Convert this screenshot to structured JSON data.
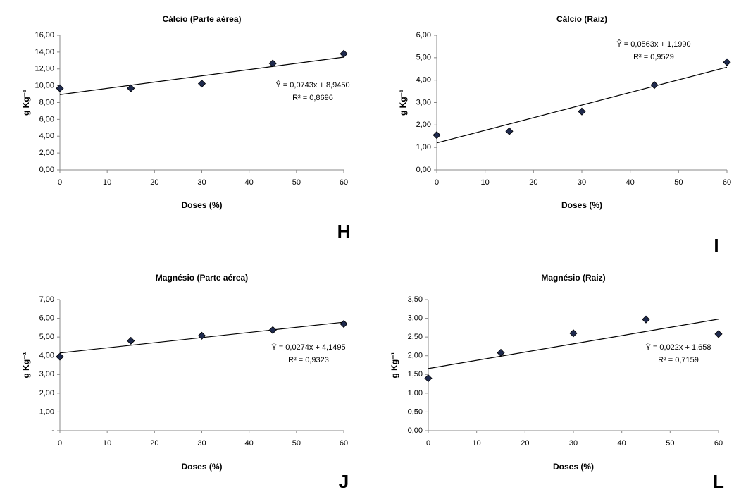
{
  "chart_data": [
    {
      "type": "scatter",
      "title": "Cálcio (Parte aérea)",
      "xlabel": "Doses (%)",
      "ylabel": "g Kg⁻¹",
      "panel_label": "H",
      "x": [
        0,
        15,
        30,
        45,
        60
      ],
      "values": [
        9.7,
        9.7,
        10.25,
        12.65,
        13.8
      ],
      "color": "#1f2a4d",
      "trendline": {
        "x": [
          0,
          60
        ],
        "values": [
          8.945,
          13.403
        ]
      },
      "annotations": [
        "Ŷ = 0,0743x + 8,9450",
        "R² = 0,8696"
      ],
      "xlim": [
        0,
        60
      ],
      "xticks": [
        0,
        10,
        20,
        30,
        40,
        50,
        60
      ],
      "ylim": [
        0,
        16
      ],
      "yticks": [
        {
          "value": 0,
          "label": "0,00"
        },
        {
          "value": 2,
          "label": "2,00"
        },
        {
          "value": 4,
          "label": "4,00"
        },
        {
          "value": 6,
          "label": "6,00"
        },
        {
          "value": 8,
          "label": "8,00"
        },
        {
          "value": 10,
          "label": "10,00"
        },
        {
          "value": 12,
          "label": "12,00"
        },
        {
          "value": 14,
          "label": "14,00"
        },
        {
          "value": 16,
          "label": "16,00"
        }
      ]
    },
    {
      "type": "scatter",
      "title": "Cálcio (Raiz)",
      "xlabel": "Doses (%)",
      "ylabel": "g Kg⁻¹",
      "panel_label": "I",
      "x": [
        0,
        15,
        30,
        45,
        60
      ],
      "values": [
        1.55,
        1.72,
        2.6,
        3.78,
        4.8
      ],
      "color": "#1f2a4d",
      "trendline": {
        "x": [
          0,
          60
        ],
        "values": [
          1.199,
          4.577
        ]
      },
      "annotations": [
        "Ŷ = 0,0563x + 1,1990",
        "R² = 0,9529"
      ],
      "xlim": [
        0,
        60
      ],
      "xticks": [
        0,
        10,
        20,
        30,
        40,
        50,
        60
      ],
      "ylim": [
        0,
        6
      ],
      "yticks": [
        {
          "value": 0,
          "label": "0,00"
        },
        {
          "value": 1,
          "label": "1,00"
        },
        {
          "value": 2,
          "label": "2,00"
        },
        {
          "value": 3,
          "label": "3,00"
        },
        {
          "value": 4,
          "label": "4,00"
        },
        {
          "value": 5,
          "label": "5,00"
        },
        {
          "value": 6,
          "label": "6,00"
        }
      ]
    },
    {
      "type": "scatter",
      "title": "Magnésio (Parte aérea)",
      "xlabel": "Doses (%)",
      "ylabel": "g Kg⁻¹",
      "panel_label": "J",
      "x": [
        0,
        15,
        30,
        45,
        60
      ],
      "values": [
        3.95,
        4.8,
        5.07,
        5.37,
        5.7
      ],
      "color": "#1f2a4d",
      "trendline": {
        "x": [
          0,
          60
        ],
        "values": [
          4.1495,
          5.7935
        ]
      },
      "annotations": [
        "Ŷ = 0,0274x + 4,1495",
        "R² = 0,9323"
      ],
      "xlim": [
        0,
        60
      ],
      "xticks": [
        0,
        10,
        20,
        30,
        40,
        50,
        60
      ],
      "ylim": [
        0,
        7
      ],
      "yticks": [
        {
          "value": 0,
          "label": "-"
        },
        {
          "value": 1,
          "label": "1,00"
        },
        {
          "value": 2,
          "label": "2,00"
        },
        {
          "value": 3,
          "label": "3,00"
        },
        {
          "value": 4,
          "label": "4,00"
        },
        {
          "value": 5,
          "label": "5,00"
        },
        {
          "value": 6,
          "label": "6,00"
        },
        {
          "value": 7,
          "label": "7,00"
        }
      ]
    },
    {
      "type": "scatter",
      "title": "Magnésio (Raiz)",
      "xlabel": "Doses (%)",
      "ylabel": "g Kg⁻¹",
      "panel_label": "L",
      "x": [
        0,
        15,
        30,
        45,
        60
      ],
      "values": [
        1.4,
        2.08,
        2.6,
        2.97,
        2.58
      ],
      "color": "#1f2a4d",
      "trendline": {
        "x": [
          0,
          60
        ],
        "values": [
          1.658,
          2.978
        ]
      },
      "annotations": [
        "Ŷ = 0,022x + 1,658",
        "R² = 0,7159"
      ],
      "xlim": [
        0,
        60
      ],
      "xticks": [
        0,
        10,
        20,
        30,
        40,
        50,
        60
      ],
      "ylim": [
        0,
        3.5
      ],
      "yticks": [
        {
          "value": 0,
          "label": "0,00"
        },
        {
          "value": 0.5,
          "label": "0,50"
        },
        {
          "value": 1,
          "label": "1,00"
        },
        {
          "value": 1.5,
          "label": "1,50"
        },
        {
          "value": 2,
          "label": "2,00"
        },
        {
          "value": 2.5,
          "label": "2,50"
        },
        {
          "value": 3,
          "label": "3,00"
        },
        {
          "value": 3.5,
          "label": "3,50"
        }
      ]
    }
  ]
}
